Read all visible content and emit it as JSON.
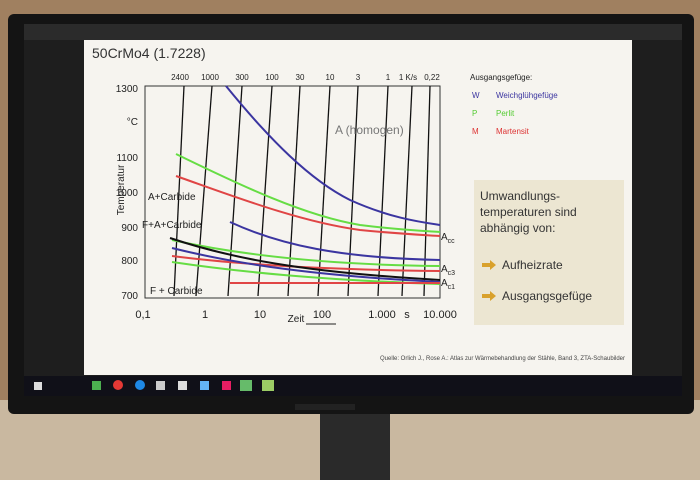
{
  "slide": {
    "title": "50CrMo4 (1.7228)",
    "rate_labels": [
      "2400",
      "1000",
      "300",
      "100",
      "30",
      "10",
      "3",
      "1",
      "1 K/s",
      "0,22"
    ],
    "y_labels": [
      "1300",
      "°C",
      "1100",
      "1000",
      "900",
      "800",
      "700"
    ],
    "y_axis_title": "Temperatur",
    "x_labels": [
      "0,1",
      "1",
      "10",
      "100",
      "1.000",
      "s",
      "10.000"
    ],
    "x_axis_title": "Zeit",
    "regions": [
      "A (homogen)",
      "A+Carbide",
      "F+A+Carbide",
      "F + Carbide"
    ],
    "curve_labels": [
      {
        "main": "A",
        "sub": "cc"
      },
      {
        "main": "A",
        "sub": "c3"
      },
      {
        "main": "A",
        "sub": "c1"
      }
    ],
    "legend": {
      "title": "Ausgangsgefüge:",
      "items": [
        {
          "key": "W",
          "text": "Weichglühgefüge"
        },
        {
          "key": "P",
          "text": "Perlit"
        },
        {
          "key": "M",
          "text": "Martensit"
        }
      ]
    },
    "box": {
      "lines": [
        "Umwandlungs-",
        "temperaturen sind",
        "abhängig von:"
      ],
      "bullets": [
        "Aufheizrate",
        "Ausgangsgefüge"
      ]
    },
    "source": "Quelle: Orlich J., Rose A.: Atlas zur Wärmebehandlung der Stähle, Band 3, ZTA-Schaubilder"
  }
}
